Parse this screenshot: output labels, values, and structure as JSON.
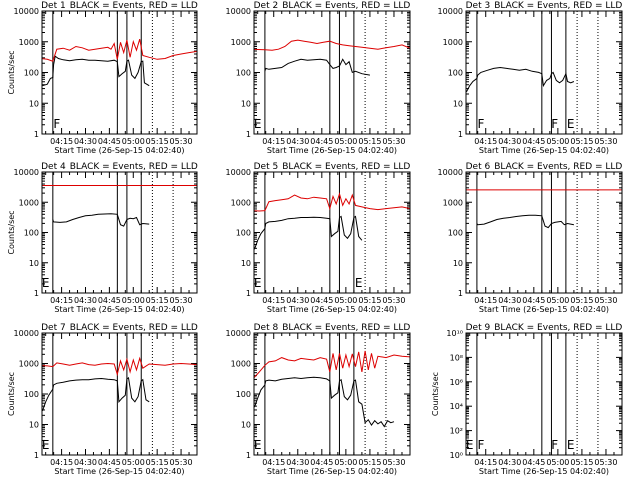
{
  "figure": {
    "xlabel": "Start Time (26-Sep-15 04:02:40)"
  },
  "legend_suffix": "BLACK = Events, RED = LLD",
  "x_ticks": [
    "04:15",
    "04:30",
    "04:45",
    "05:00",
    "05:15",
    "05:30"
  ],
  "x_tick_minutes": [
    15,
    30,
    45,
    60,
    75,
    90
  ],
  "chart_data": [
    {
      "type": "line",
      "title": "Det 1",
      "ylabel": "Counts/sec",
      "yscale": "log",
      "ylim": [
        1,
        12000
      ],
      "y_ticks": [
        "1",
        "10",
        "100",
        "1000",
        "10000"
      ],
      "xlim_minutes": [
        2.7,
        100
      ],
      "vlines": [
        9.5,
        50,
        56,
        65
      ],
      "vdotted": [
        72,
        85
      ],
      "markers": [
        {
          "text": "F",
          "x": 12
        }
      ],
      "series": [
        {
          "name": "BLACK",
          "color": "#000000",
          "x": [
            3,
            6,
            8,
            9.5,
            10,
            11,
            13,
            16,
            20,
            24,
            28,
            32,
            36,
            40,
            44,
            48,
            50,
            51,
            53,
            55,
            56,
            57,
            59,
            61,
            63,
            65,
            66,
            67,
            70
          ],
          "y": [
            40,
            45,
            70,
            75,
            200,
            380,
            320,
            290,
            270,
            290,
            300,
            280,
            280,
            270,
            260,
            280,
            250,
            80,
            100,
            120,
            260,
            280,
            90,
            70,
            110,
            250,
            260,
            50,
            40
          ]
        },
        {
          "name": "RED",
          "color": "#dd0000",
          "x": [
            0,
            6,
            9.5,
            12,
            16,
            20,
            24,
            28,
            32,
            36,
            40,
            44,
            46,
            48,
            50,
            52,
            54,
            56,
            58,
            60,
            62,
            64,
            66,
            70,
            75,
            80,
            85,
            90,
            95,
            100
          ],
          "y": [
            330,
            300,
            260,
            650,
            700,
            600,
            800,
            720,
            600,
            650,
            700,
            750,
            650,
            1000,
            300,
            1100,
            500,
            1300,
            350,
            1150,
            600,
            1400,
            400,
            350,
            300,
            320,
            400,
            450,
            500,
            550
          ]
        }
      ]
    },
    {
      "type": "line",
      "title": "Det 2",
      "ylabel": "",
      "yscale": "log",
      "ylim": [
        1,
        12000
      ],
      "y_ticks": [
        "1",
        "10",
        "100",
        "1000",
        "10000"
      ],
      "xlim_minutes": [
        2.7,
        100
      ],
      "vlines": [
        9.5,
        50,
        56,
        65
      ],
      "vdotted": [
        72,
        85
      ],
      "markers": [
        {
          "text": "E",
          "x": 5
        }
      ],
      "series": [
        {
          "name": "BLACK",
          "color": "#000000",
          "x": [
            9.5,
            10,
            12,
            16,
            20,
            24,
            28,
            32,
            36,
            40,
            44,
            48,
            50,
            52,
            54,
            56,
            58,
            60,
            62,
            64,
            66,
            70,
            75
          ],
          "y": [
            120,
            150,
            140,
            150,
            160,
            220,
            260,
            300,
            280,
            290,
            300,
            280,
            200,
            150,
            160,
            180,
            300,
            200,
            250,
            110,
            120,
            100,
            90
          ]
        },
        {
          "name": "RED",
          "color": "#dd0000",
          "x": [
            0,
            9.5,
            14,
            18,
            22,
            26,
            30,
            34,
            38,
            42,
            46,
            50,
            54,
            58,
            62,
            66,
            70,
            75,
            80,
            85,
            90,
            95,
            100
          ],
          "y": [
            650,
            620,
            600,
            650,
            800,
            1200,
            1300,
            1200,
            1100,
            1000,
            1100,
            1200,
            1000,
            900,
            850,
            800,
            750,
            700,
            650,
            720,
            800,
            900,
            700
          ]
        }
      ]
    },
    {
      "type": "line",
      "title": "Det 3",
      "ylabel": "",
      "yscale": "log",
      "ylim": [
        1,
        12000
      ],
      "y_ticks": [
        "1",
        "10",
        "100",
        "1000",
        "10000"
      ],
      "xlim_minutes": [
        2.7,
        100
      ],
      "vlines": [
        9.5,
        50,
        56,
        65
      ],
      "vdotted": [
        72,
        85
      ],
      "markers": [
        {
          "text": "F",
          "x": 12
        },
        {
          "text": "F",
          "x": 58
        },
        {
          "text": "E",
          "x": 68
        }
      ],
      "series": [
        {
          "name": "BLACK",
          "color": "#000000",
          "x": [
            3,
            5,
            7,
            9.5,
            10,
            12,
            16,
            20,
            24,
            28,
            32,
            36,
            40,
            44,
            48,
            50,
            51,
            53,
            55,
            56,
            57,
            59,
            61,
            63,
            65,
            66,
            68,
            70
          ],
          "y": [
            25,
            40,
            55,
            70,
            90,
            110,
            130,
            150,
            160,
            150,
            140,
            130,
            140,
            120,
            110,
            100,
            40,
            60,
            70,
            100,
            110,
            60,
            50,
            60,
            100,
            55,
            50,
            55
          ]
        }
      ]
    },
    {
      "type": "line",
      "title": "Det 4",
      "ylabel": "Counts/sec",
      "yscale": "log",
      "ylim": [
        1,
        12000
      ],
      "y_ticks": [
        "1",
        "10",
        "100",
        "1000",
        "10000"
      ],
      "xlim_minutes": [
        2.7,
        100
      ],
      "vlines": [
        9.5,
        50,
        56,
        65
      ],
      "vdotted": [
        72,
        85
      ],
      "markers": [
        {
          "text": "E",
          "x": 5
        }
      ],
      "series": [
        {
          "name": "BLACK",
          "color": "#000000",
          "x": [
            9.5,
            10,
            14,
            18,
            22,
            26,
            30,
            34,
            38,
            42,
            46,
            50,
            52,
            54,
            56,
            58,
            60,
            62,
            64,
            66,
            70
          ],
          "y": [
            300,
            250,
            240,
            250,
            300,
            350,
            400,
            420,
            450,
            460,
            470,
            450,
            200,
            180,
            300,
            330,
            320,
            350,
            200,
            220,
            210
          ]
        },
        {
          "name": "RED",
          "color": "#dd0000",
          "x": [
            0,
            100
          ],
          "y": [
            4200,
            4200
          ]
        }
      ]
    },
    {
      "type": "line",
      "title": "Det 5",
      "ylabel": "",
      "yscale": "log",
      "ylim": [
        1,
        12000
      ],
      "y_ticks": [
        "1",
        "10",
        "100",
        "1000",
        "10000"
      ],
      "xlim_minutes": [
        2.7,
        100
      ],
      "vlines": [
        9.5,
        50,
        56,
        65
      ],
      "vdotted": [
        72,
        85
      ],
      "markers": [
        {
          "text": "E",
          "x": 5
        },
        {
          "text": "E",
          "x": 68
        }
      ],
      "series": [
        {
          "name": "BLACK",
          "color": "#000000",
          "x": [
            3,
            5,
            7,
            9.5,
            10,
            12,
            16,
            20,
            24,
            28,
            32,
            36,
            40,
            44,
            48,
            50,
            51,
            53,
            55,
            56,
            57,
            59,
            61,
            63,
            65,
            66,
            68,
            70
          ],
          "y": [
            30,
            60,
            100,
            150,
            220,
            250,
            260,
            280,
            320,
            330,
            350,
            350,
            360,
            350,
            330,
            320,
            80,
            100,
            120,
            350,
            380,
            90,
            70,
            100,
            350,
            380,
            80,
            60
          ]
        },
        {
          "name": "RED",
          "color": "#dd0000",
          "x": [
            0,
            6,
            9.5,
            12,
            16,
            20,
            24,
            28,
            32,
            36,
            40,
            44,
            48,
            50,
            52,
            54,
            56,
            58,
            60,
            62,
            64,
            66,
            70,
            75,
            80,
            85,
            90,
            95,
            100
          ],
          "y": [
            600,
            580,
            600,
            1200,
            1300,
            1400,
            1500,
            2000,
            1600,
            1500,
            1700,
            1600,
            1500,
            700,
            1800,
            1000,
            2200,
            900,
            1500,
            1000,
            2000,
            900,
            800,
            700,
            650,
            700,
            750,
            800,
            700
          ]
        }
      ]
    },
    {
      "type": "line",
      "title": "Det 6",
      "ylabel": "",
      "yscale": "log",
      "ylim": [
        1,
        12000
      ],
      "y_ticks": [
        "1",
        "10",
        "100",
        "1000",
        "10000"
      ],
      "xlim_minutes": [
        2.7,
        100
      ],
      "vlines": [
        9.5,
        50,
        56,
        65
      ],
      "vdotted": [
        72,
        85
      ],
      "markers": [],
      "series": [
        {
          "name": "BLACK",
          "color": "#000000",
          "x": [
            9.5,
            10,
            14,
            18,
            22,
            26,
            30,
            34,
            38,
            42,
            46,
            50,
            52,
            54,
            56,
            58,
            60,
            62,
            64,
            66,
            70
          ],
          "y": [
            220,
            200,
            210,
            250,
            300,
            330,
            350,
            380,
            400,
            420,
            420,
            400,
            180,
            160,
            220,
            240,
            250,
            260,
            200,
            220,
            200
          ]
        },
        {
          "name": "RED",
          "color": "#dd0000",
          "x": [
            0,
            100
          ],
          "y": [
            3000,
            3000
          ]
        }
      ]
    },
    {
      "type": "line",
      "title": "Det 7",
      "ylabel": "Counts/sec",
      "yscale": "log",
      "ylim": [
        1,
        12000
      ],
      "y_ticks": [
        "1",
        "10",
        "100",
        "1000",
        "10000"
      ],
      "xlim_minutes": [
        2.7,
        100
      ],
      "vlines": [
        9.5,
        50,
        56,
        65
      ],
      "vdotted": [
        72,
        85
      ],
      "markers": [
        {
          "text": "E",
          "x": 5
        }
      ],
      "series": [
        {
          "name": "BLACK",
          "color": "#000000",
          "x": [
            3,
            5,
            7,
            9.5,
            10,
            12,
            16,
            20,
            24,
            28,
            32,
            36,
            40,
            44,
            48,
            50,
            51,
            53,
            55,
            56,
            57,
            59,
            61,
            63,
            65,
            66,
            68,
            70
          ],
          "y": [
            30,
            60,
            100,
            160,
            220,
            250,
            270,
            300,
            320,
            330,
            330,
            350,
            360,
            340,
            330,
            300,
            60,
            80,
            100,
            350,
            380,
            80,
            60,
            90,
            300,
            330,
            70,
            60
          ]
        },
        {
          "name": "RED",
          "color": "#dd0000",
          "x": [
            0,
            6,
            9.5,
            12,
            16,
            20,
            24,
            28,
            32,
            36,
            40,
            44,
            48,
            50,
            52,
            54,
            56,
            58,
            60,
            62,
            64,
            66,
            70,
            75,
            80,
            85,
            90,
            95,
            100
          ],
          "y": [
            1000,
            950,
            900,
            1200,
            1100,
            1000,
            1100,
            1200,
            1050,
            1000,
            1100,
            1150,
            1100,
            500,
            1400,
            700,
            1600,
            600,
            1500,
            700,
            1700,
            800,
            1100,
            1050,
            1000,
            1100,
            1150,
            1100,
            1050
          ]
        }
      ]
    },
    {
      "type": "line",
      "title": "Det 8",
      "ylabel": "",
      "yscale": "log",
      "ylim": [
        1,
        12000
      ],
      "y_ticks": [
        "1",
        "10",
        "100",
        "1000",
        "10000"
      ],
      "xlim_minutes": [
        2.7,
        100
      ],
      "vlines": [
        9.5,
        50,
        56,
        65
      ],
      "vdotted": [
        72,
        85
      ],
      "markers": [
        {
          "text": "E",
          "x": 5
        }
      ],
      "series": [
        {
          "name": "BLACK",
          "color": "#000000",
          "x": [
            3,
            5,
            7,
            9.5,
            10,
            12,
            16,
            20,
            24,
            28,
            32,
            36,
            40,
            44,
            48,
            50,
            51,
            53,
            55,
            56,
            57,
            59,
            61,
            63,
            65,
            66,
            68,
            70,
            72,
            74,
            76,
            78,
            80,
            82,
            84,
            86,
            88,
            90
          ],
          "y": [
            40,
            80,
            150,
            220,
            300,
            320,
            300,
            340,
            360,
            380,
            360,
            380,
            400,
            380,
            350,
            300,
            80,
            100,
            120,
            300,
            330,
            90,
            70,
            100,
            300,
            320,
            60,
            50,
            12,
            15,
            10,
            14,
            11,
            13,
            9,
            14,
            12,
            13
          ]
        },
        {
          "name": "RED",
          "color": "#dd0000",
          "x": [
            0,
            3,
            6,
            9.5,
            12,
            16,
            20,
            24,
            28,
            32,
            36,
            40,
            44,
            48,
            50,
            52,
            54,
            56,
            58,
            60,
            62,
            64,
            66,
            68,
            70,
            72,
            74,
            76,
            78,
            80,
            85,
            90,
            95,
            100
          ],
          "y": [
            500,
            400,
            600,
            1000,
            1300,
            1400,
            1800,
            1500,
            1400,
            1700,
            1600,
            1500,
            1800,
            1600,
            600,
            2500,
            700,
            2500,
            800,
            2200,
            900,
            2400,
            900,
            2800,
            600,
            3000,
            700,
            2500,
            800,
            2000,
            1800,
            2200,
            2000,
            1900
          ]
        }
      ]
    },
    {
      "type": "line",
      "title": "Det 9",
      "ylabel": "Counts/sec",
      "yscale": "log",
      "ylim": [
        1,
        10000000000
      ],
      "y_ticks": [
        "10⁰",
        "10²",
        "10⁴",
        "10⁶",
        "10⁸",
        "10¹⁰"
      ],
      "xlim_minutes": [
        2.7,
        100
      ],
      "vlines": [
        9.5,
        50,
        56,
        65
      ],
      "vdotted": [
        72,
        85
      ],
      "markers": [
        {
          "text": "E",
          "x": 5
        },
        {
          "text": "F",
          "x": 12
        },
        {
          "text": "F",
          "x": 58
        },
        {
          "text": "E",
          "x": 68
        }
      ],
      "series": []
    }
  ]
}
